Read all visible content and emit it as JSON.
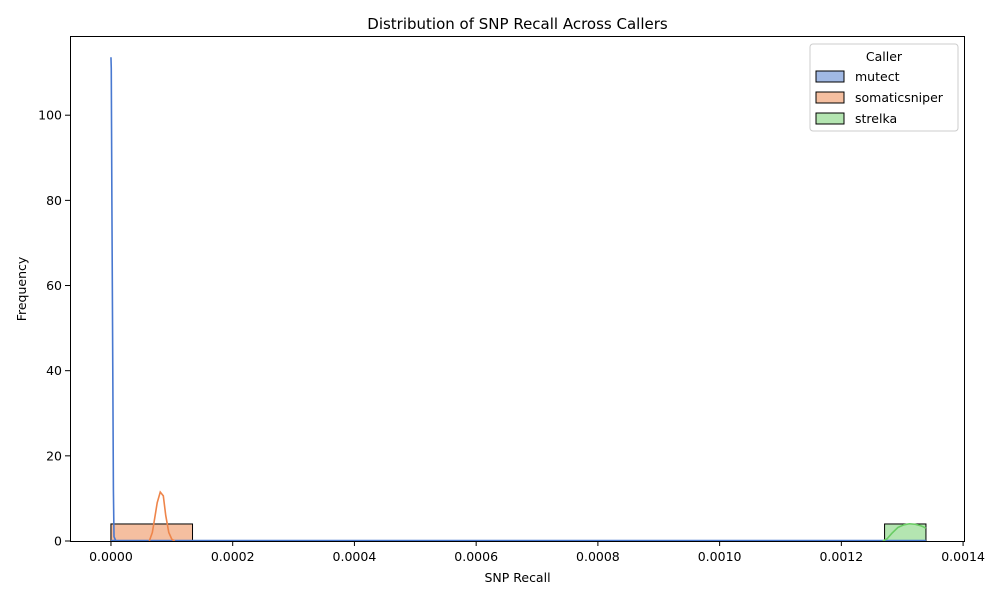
{
  "chart_data": {
    "type": "histogram",
    "title": "Distribution of SNP Recall Across Callers",
    "xlabel": "SNP Recall",
    "ylabel": "Frequency",
    "xlim": [
      -6.73e-05,
      0.0014015
    ],
    "ylim": [
      0,
      118.6
    ],
    "xticks": [
      0,
      0.0002,
      0.0004,
      0.0006,
      0.0008,
      0.001,
      0.0012,
      0.0014
    ],
    "xtick_labels": [
      "0.0000",
      "0.0002",
      "0.0004",
      "0.0006",
      "0.0008",
      "0.0010",
      "0.0012",
      "0.0014"
    ],
    "yticks": [
      0,
      20,
      40,
      60,
      80,
      100
    ],
    "ytick_labels": [
      "0",
      "20",
      "40",
      "60",
      "80",
      "100"
    ],
    "grid": false,
    "legend": {
      "title": "Caller",
      "position": "top-right"
    },
    "series": [
      {
        "name": "mutect",
        "color": "#4878d0",
        "fill": "#a1b9e4",
        "bins": [
          {
            "x0": 0.0,
            "x1": 5e-07,
            "count": 4
          }
        ],
        "kde": [
          [
            0.0,
            113.6
          ],
          [
            5e-07,
            111
          ],
          [
            1.5e-06,
            80
          ],
          [
            3e-06,
            40
          ],
          [
            4e-06,
            12
          ],
          [
            5e-06,
            1
          ],
          [
            8e-06,
            0
          ],
          [
            3e-05,
            0
          ]
        ]
      },
      {
        "name": "somaticsniper",
        "color": "#ee854a",
        "fill": "#f5bfa0",
        "bins": [
          {
            "x0": 0.0,
            "x1": 0.000134,
            "count": 4
          }
        ],
        "kde": [
          [
            6.3e-05,
            0
          ],
          [
            6.8e-05,
            2
          ],
          [
            7.2e-05,
            5.5
          ],
          [
            7.6e-05,
            9
          ],
          [
            8.1e-05,
            11.5
          ],
          [
            8.6e-05,
            10.6
          ],
          [
            9e-05,
            6
          ],
          [
            9.5e-05,
            2
          ],
          [
            0.0001,
            0.4
          ],
          [
            0.000105,
            0
          ]
        ]
      },
      {
        "name": "strelka",
        "color": "#6acc64",
        "fill": "#b4e5b1",
        "bins": [
          {
            "x0": 0.001271,
            "x1": 0.001339,
            "count": 4
          }
        ],
        "kde": [
          [
            0.001268,
            0
          ],
          [
            0.001275,
            0.5
          ],
          [
            0.001283,
            1.8
          ],
          [
            0.001293,
            3.2
          ],
          [
            0.001303,
            3.8
          ],
          [
            0.001312,
            4.05
          ],
          [
            0.001322,
            3.9
          ],
          [
            0.00133,
            3.6
          ],
          [
            0.001335,
            3.3
          ],
          [
            0.001339,
            3.0
          ]
        ]
      }
    ],
    "baseline_x": [
      0.0,
      0.001339
    ]
  }
}
